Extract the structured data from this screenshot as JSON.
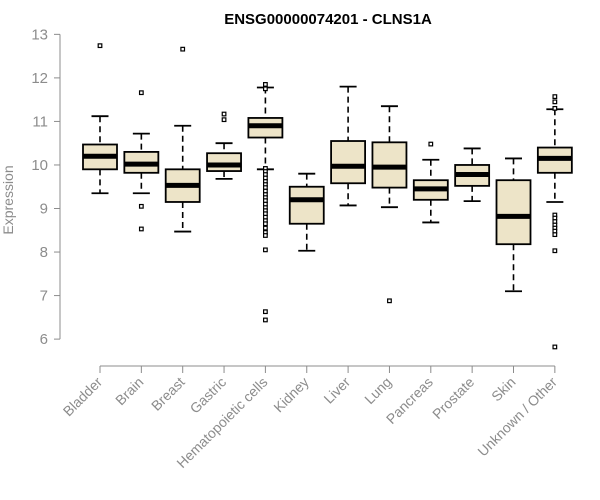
{
  "chart_data": {
    "type": "boxplot",
    "title": "ENSG00000074201 - CLNS1A",
    "ylabel": "Expression",
    "xlabel": "",
    "ylim": [
      5.75,
      13.1
    ],
    "yticks": [
      6,
      7,
      8,
      9,
      10,
      11,
      12,
      13
    ],
    "colors": {
      "box_fill": "#ede4c8",
      "stroke": "#000000",
      "axis": "#8c8c8c",
      "axis_text": "#8c8c8c"
    },
    "categories": [
      "Bladder",
      "Brain",
      "Breast",
      "Gastric",
      "Hematopoietic cells",
      "Kidney",
      "Liver",
      "Lung",
      "Pancreas",
      "Prostate",
      "Skin",
      "Unknown / Other"
    ],
    "boxes": [
      {
        "name": "Bladder",
        "whisker_low": 9.35,
        "q1": 9.9,
        "median": 10.2,
        "q3": 10.47,
        "whisker_high": 11.12,
        "outliers": [
          12.74
        ]
      },
      {
        "name": "Brain",
        "whisker_low": 9.35,
        "q1": 9.82,
        "median": 10.02,
        "q3": 10.3,
        "whisker_high": 10.72,
        "outliers": [
          11.66,
          9.05,
          8.53
        ]
      },
      {
        "name": "Breast",
        "whisker_low": 8.47,
        "q1": 9.15,
        "median": 9.53,
        "q3": 9.9,
        "whisker_high": 10.9,
        "outliers": [
          12.66
        ]
      },
      {
        "name": "Gastric",
        "whisker_low": 9.68,
        "q1": 9.86,
        "median": 10.0,
        "q3": 10.27,
        "whisker_high": 10.5,
        "outliers": [
          11.17,
          11.04
        ]
      },
      {
        "name": "Hematopoietic cells",
        "whisker_low": 9.9,
        "q1": 10.63,
        "median": 10.9,
        "q3": 11.08,
        "whisker_high": 11.78,
        "outliers": [
          11.85,
          11.75,
          9.92,
          9.85,
          9.78,
          9.7,
          9.62,
          9.55,
          9.48,
          9.4,
          9.32,
          9.25,
          9.18,
          9.1,
          9.02,
          8.95,
          8.88,
          8.8,
          8.72,
          8.65,
          8.55,
          8.45,
          8.38,
          8.05,
          6.63,
          6.44
        ]
      },
      {
        "name": "Kidney",
        "whisker_low": 8.03,
        "q1": 8.65,
        "median": 9.2,
        "q3": 9.5,
        "whisker_high": 9.8,
        "outliers": []
      },
      {
        "name": "Liver",
        "whisker_low": 9.07,
        "q1": 9.58,
        "median": 9.97,
        "q3": 10.55,
        "whisker_high": 11.8,
        "outliers": []
      },
      {
        "name": "Lung",
        "whisker_low": 9.03,
        "q1": 9.48,
        "median": 9.95,
        "q3": 10.52,
        "whisker_high": 11.35,
        "outliers": [
          6.88
        ]
      },
      {
        "name": "Pancreas",
        "whisker_low": 8.68,
        "q1": 9.2,
        "median": 9.45,
        "q3": 9.65,
        "whisker_high": 10.12,
        "outliers": [
          10.48
        ]
      },
      {
        "name": "Prostate",
        "whisker_low": 9.17,
        "q1": 9.52,
        "median": 9.78,
        "q3": 10.0,
        "whisker_high": 10.38,
        "outliers": []
      },
      {
        "name": "Skin",
        "whisker_low": 7.1,
        "q1": 8.18,
        "median": 8.82,
        "q3": 9.65,
        "whisker_high": 10.15,
        "outliers": []
      },
      {
        "name": "Unknown / Other",
        "whisker_low": 9.15,
        "q1": 9.82,
        "median": 10.15,
        "q3": 10.4,
        "whisker_high": 11.28,
        "outliers": [
          11.57,
          11.45,
          11.3,
          8.85,
          8.78,
          8.7,
          8.62,
          8.55,
          8.48,
          8.4,
          8.03,
          5.82
        ]
      }
    ]
  }
}
